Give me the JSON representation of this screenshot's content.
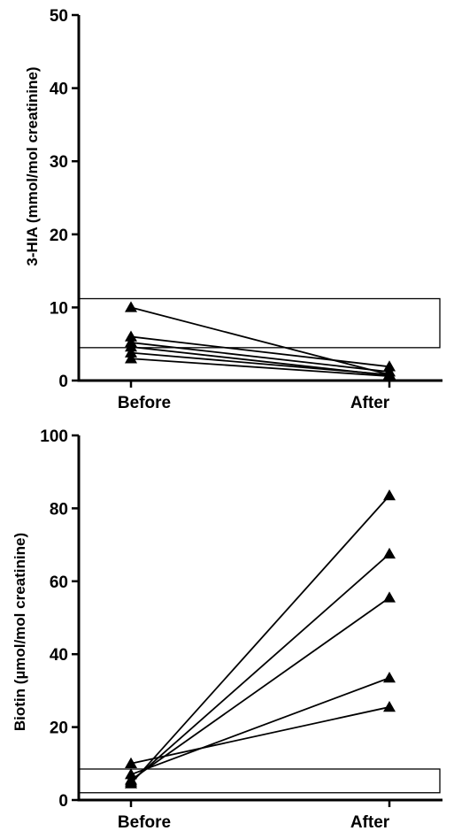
{
  "chart_data": [
    {
      "type": "line",
      "ylabel": "3-HIA (mmol/mol creatinine)",
      "categories": [
        "Before",
        "After"
      ],
      "ylim": [
        0,
        50
      ],
      "yticks": [
        0,
        10,
        20,
        30,
        40,
        50
      ],
      "grid": false,
      "marker": "triangle",
      "reference_range": [
        4.5,
        11.2
      ],
      "series": [
        {
          "values": [
            10.0,
            0.8
          ]
        },
        {
          "values": [
            6.0,
            1.9
          ]
        },
        {
          "values": [
            5.2,
            1.2
          ]
        },
        {
          "values": [
            4.6,
            0.7
          ]
        },
        {
          "values": [
            3.8,
            0.8
          ]
        },
        {
          "values": [
            3.0,
            0.6
          ]
        }
      ]
    },
    {
      "type": "line",
      "ylabel": "Biotin (µmol/mol creatinine)",
      "categories": [
        "Before",
        "After"
      ],
      "ylim": [
        0,
        100
      ],
      "yticks": [
        0,
        20,
        40,
        60,
        80,
        100
      ],
      "grid": false,
      "marker": "triangle",
      "reference_range": [
        2,
        8.5
      ],
      "series": [
        {
          "values": [
            10.0,
            25.5
          ]
        },
        {
          "values": [
            7.0,
            33.5
          ]
        },
        {
          "values": [
            5.5,
            55.5
          ]
        },
        {
          "values": [
            5.0,
            67.5
          ]
        },
        {
          "values": [
            4.5,
            83.5
          ]
        }
      ]
    }
  ]
}
